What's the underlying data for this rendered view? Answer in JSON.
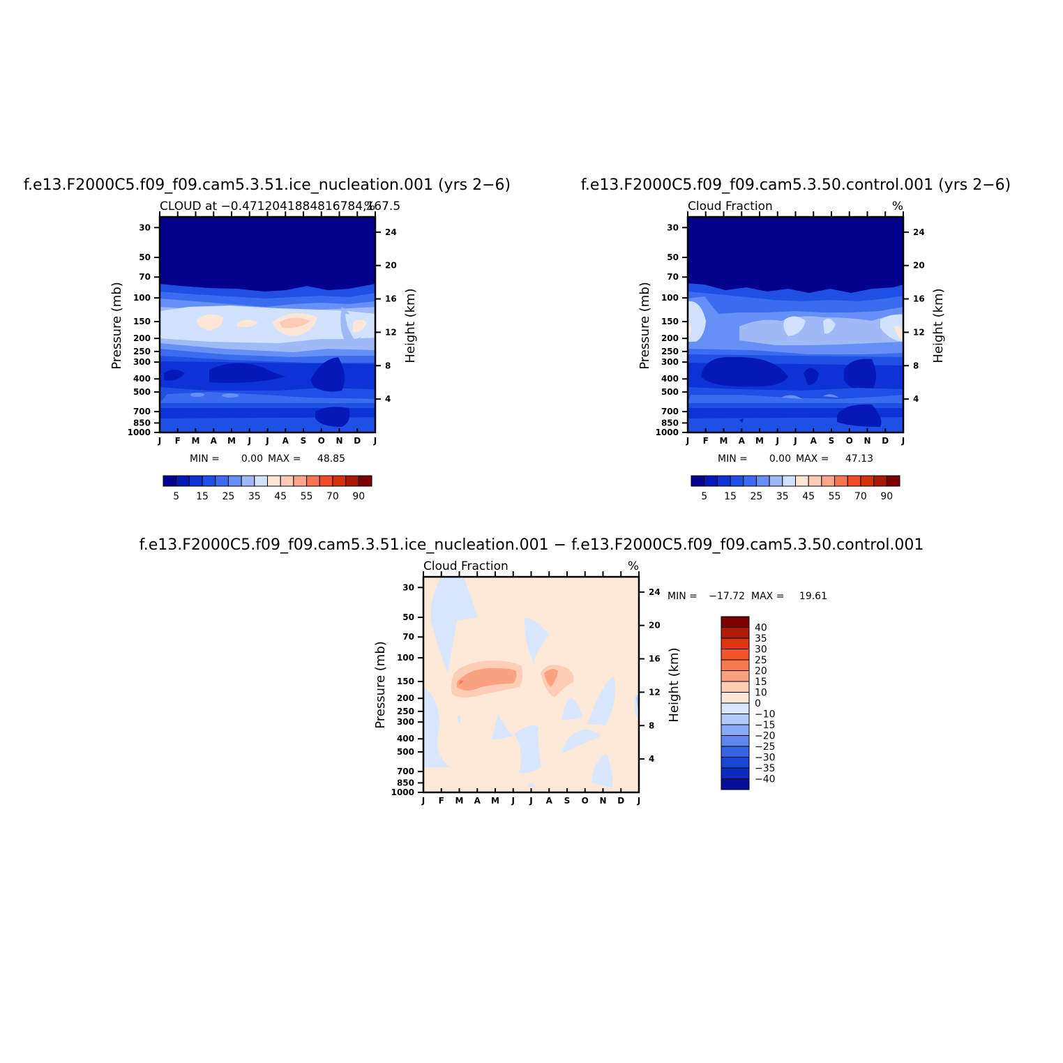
{
  "chart_data": [
    {
      "type": "heatmap",
      "id": "p1",
      "case_title": "f.e13.F2000C5.f09_f09.cam5.3.51.ice_nucleation.001 (yrs 2−6)",
      "left_subtitle": "CLOUD at −0.4712041884816784,167.5",
      "right_subtitle": "%",
      "xlabels": [
        "J",
        "F",
        "M",
        "A",
        "M",
        "J",
        "J",
        "A",
        "S",
        "O",
        "N",
        "D",
        "J"
      ],
      "pressure_ticks": [
        30,
        50,
        70,
        100,
        150,
        200,
        250,
        300,
        400,
        500,
        700,
        850,
        1000
      ],
      "height_ticks": [
        24,
        20,
        16,
        12,
        8,
        4
      ],
      "ylabel_left": "Pressure (mb)",
      "ylabel_right": "Height (km)",
      "min_label": "MIN =",
      "min_value": "0.00",
      "max_label": "MAX =",
      "max_value": "48.85",
      "colorbar_levels": [
        5,
        10,
        15,
        20,
        25,
        30,
        35,
        40,
        45,
        50,
        55,
        60,
        70,
        80,
        90
      ],
      "colorbar_labels": [
        "5",
        "15",
        "25",
        "35",
        "45",
        "55",
        "70",
        "90"
      ],
      "colorbar_colors": [
        "#02028c",
        "#0419b8",
        "#0d32d6",
        "#1f4fe3",
        "#3b6cf0",
        "#6690f5",
        "#9fbaf7",
        "#d0e2fd",
        "#fde6d6",
        "#fdcbb5",
        "#fba68a",
        "#f77552",
        "#ee4b26",
        "#d4320d",
        "#a81a06",
        "#7d0000"
      ],
      "profile_pressure": [
        30,
        50,
        70,
        100,
        150,
        200,
        250,
        300,
        400,
        500,
        700,
        850,
        1000
      ],
      "profile_values": [
        0,
        0,
        1.5,
        17,
        39,
        28,
        22,
        17,
        14,
        22,
        15,
        13,
        13
      ]
    },
    {
      "type": "heatmap",
      "id": "p2",
      "case_title": "f.e13.F2000C5.f09_f09.cam5.3.50.control.001 (yrs 2−6)",
      "left_subtitle": "Cloud Fraction",
      "right_subtitle": "%",
      "xlabels": [
        "J",
        "F",
        "M",
        "A",
        "M",
        "J",
        "J",
        "A",
        "S",
        "O",
        "N",
        "D",
        "J"
      ],
      "pressure_ticks": [
        30,
        50,
        70,
        100,
        150,
        200,
        250,
        300,
        400,
        500,
        700,
        850,
        1000
      ],
      "height_ticks": [
        24,
        20,
        16,
        12,
        8,
        4
      ],
      "ylabel_left": "Pressure (mb)",
      "ylabel_right": "Height (km)",
      "min_label": "MIN =",
      "min_value": "0.00",
      "max_label": "MAX =",
      "max_value": "47.13",
      "colorbar_levels": [
        5,
        10,
        15,
        20,
        25,
        30,
        35,
        40,
        45,
        50,
        55,
        60,
        70,
        80,
        90
      ],
      "colorbar_labels": [
        "5",
        "15",
        "25",
        "35",
        "45",
        "55",
        "70",
        "90"
      ],
      "colorbar_colors": [
        "#02028c",
        "#0419b8",
        "#0d32d6",
        "#1f4fe3",
        "#3b6cf0",
        "#6690f5",
        "#9fbaf7",
        "#d0e2fd",
        "#fde6d6",
        "#fdcbb5",
        "#fba68a",
        "#f77552",
        "#ee4b26",
        "#d4320d",
        "#a81a06",
        "#7d0000"
      ],
      "profile_pressure": [
        30,
        50,
        70,
        100,
        150,
        200,
        250,
        300,
        400,
        500,
        700,
        850,
        1000
      ],
      "profile_values": [
        0,
        0,
        1.5,
        16,
        31,
        24,
        19,
        15,
        12,
        20,
        14,
        13,
        13
      ]
    },
    {
      "type": "heatmap",
      "id": "p3",
      "case_title": "f.e13.F2000C5.f09_f09.cam5.3.51.ice_nucleation.001 − f.e13.F2000C5.f09_f09.cam5.3.50.control.001",
      "left_subtitle": "Cloud Fraction",
      "right_subtitle": "%",
      "xlabels": [
        "J",
        "F",
        "M",
        "A",
        "M",
        "J",
        "J",
        "A",
        "S",
        "O",
        "N",
        "D",
        "J"
      ],
      "pressure_ticks": [
        30,
        50,
        70,
        100,
        150,
        200,
        250,
        300,
        400,
        500,
        700,
        850,
        1000
      ],
      "height_ticks": [
        24,
        20,
        16,
        12,
        8,
        4
      ],
      "ylabel_left": "Pressure (mb)",
      "ylabel_right": "Height (km)",
      "min_label": "MIN =",
      "min_value": "−17.72",
      "max_label": "MAX =",
      "max_value": "19.61",
      "colorbar_levels": [
        40,
        35,
        30,
        25,
        20,
        15,
        10,
        0,
        -10,
        -15,
        -20,
        -25,
        -30,
        -35,
        -40
      ],
      "colorbar_labels": [
        "40",
        "35",
        "30",
        "25",
        "20",
        "15",
        "10",
        "0",
        "−10",
        "−15",
        "−20",
        "−25",
        "−30",
        "−35",
        "−40"
      ],
      "colorbar_colors": [
        "#7d0000",
        "#b01c07",
        "#dc3510",
        "#f25628",
        "#f7794f",
        "#fba283",
        "#fdcdb6",
        "#fee9d8",
        "#d8e7fd",
        "#b3cbf8",
        "#88aaf4",
        "#5c86ee",
        "#3664e4",
        "#1a46d6",
        "#0a2cb8",
        "#040e98"
      ],
      "profile_pressure": [
        30,
        50,
        70,
        100,
        150,
        200,
        250,
        300,
        400,
        500,
        700,
        850,
        1000
      ],
      "profile_values": [
        0,
        0,
        0,
        2,
        7,
        2,
        0,
        1,
        0,
        1,
        0,
        0,
        0
      ]
    }
  ]
}
